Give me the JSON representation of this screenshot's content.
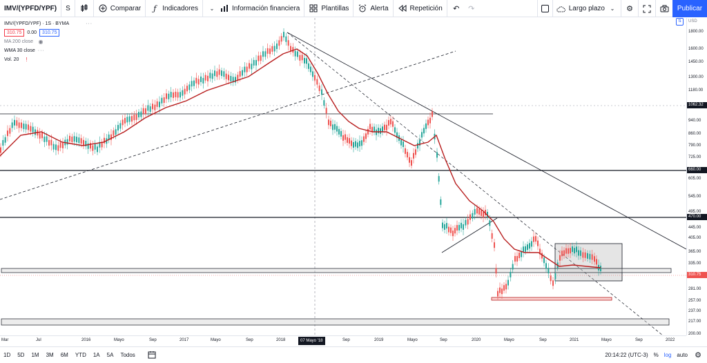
{
  "toolbar": {
    "symbol": "IMV/(YPFD/YPF)",
    "interval": "S",
    "compare": "Comparar",
    "indicators": "Indicadores",
    "financials": "Información financiera",
    "templates": "Plantillas",
    "alert": "Alerta",
    "replay": "Repetición",
    "layout_name": "Largo plazo",
    "publish": "Publicar"
  },
  "legend": {
    "title": "IMV/(YPFD/YPF) · 1S · BYMA",
    "bid": "310.75",
    "spread": "0.00",
    "ask": "310.75",
    "ma": "MA 200 close",
    "wma": "WMA 30 close",
    "vol": "Vol. 20"
  },
  "price_axis": {
    "currency": "USD",
    "labels": [
      "1800.00",
      "1600.00",
      "1450.00",
      "1300.00",
      "1180.00",
      "940.00",
      "860.00",
      "790.00",
      "725.00",
      "605.00",
      "545.00",
      "495.00",
      "445.00",
      "405.00",
      "365.00",
      "335.00",
      "281.00",
      "257.00",
      "237.00",
      "217.00",
      "200.00"
    ],
    "tags": {
      "a": "1062.32",
      "b": "660.00",
      "c": "470.00",
      "d": "310.75"
    }
  },
  "time_axis": {
    "labels": [
      "Mar",
      "Jul",
      "2016",
      "Mayo",
      "Sep",
      "2017",
      "Mayo",
      "Sep",
      "2018",
      "Sep",
      "2019",
      "Mayo",
      "Sep",
      "2020",
      "Mayo",
      "Sep",
      "2021",
      "Mayo",
      "Sep",
      "2022"
    ],
    "cursor": "07 Mayo '18"
  },
  "bottom": {
    "ranges": [
      "1D",
      "5D",
      "1M",
      "3M",
      "6M",
      "YTD",
      "1A",
      "5A",
      "Todos"
    ],
    "time": "20:14:22 (UTC-3)",
    "percent": "%",
    "log": "log",
    "auto": "auto"
  },
  "colors": {
    "accent": "#2962ff",
    "up": "#26a69a",
    "down": "#ef5350",
    "ma": "#b71c1c"
  }
}
